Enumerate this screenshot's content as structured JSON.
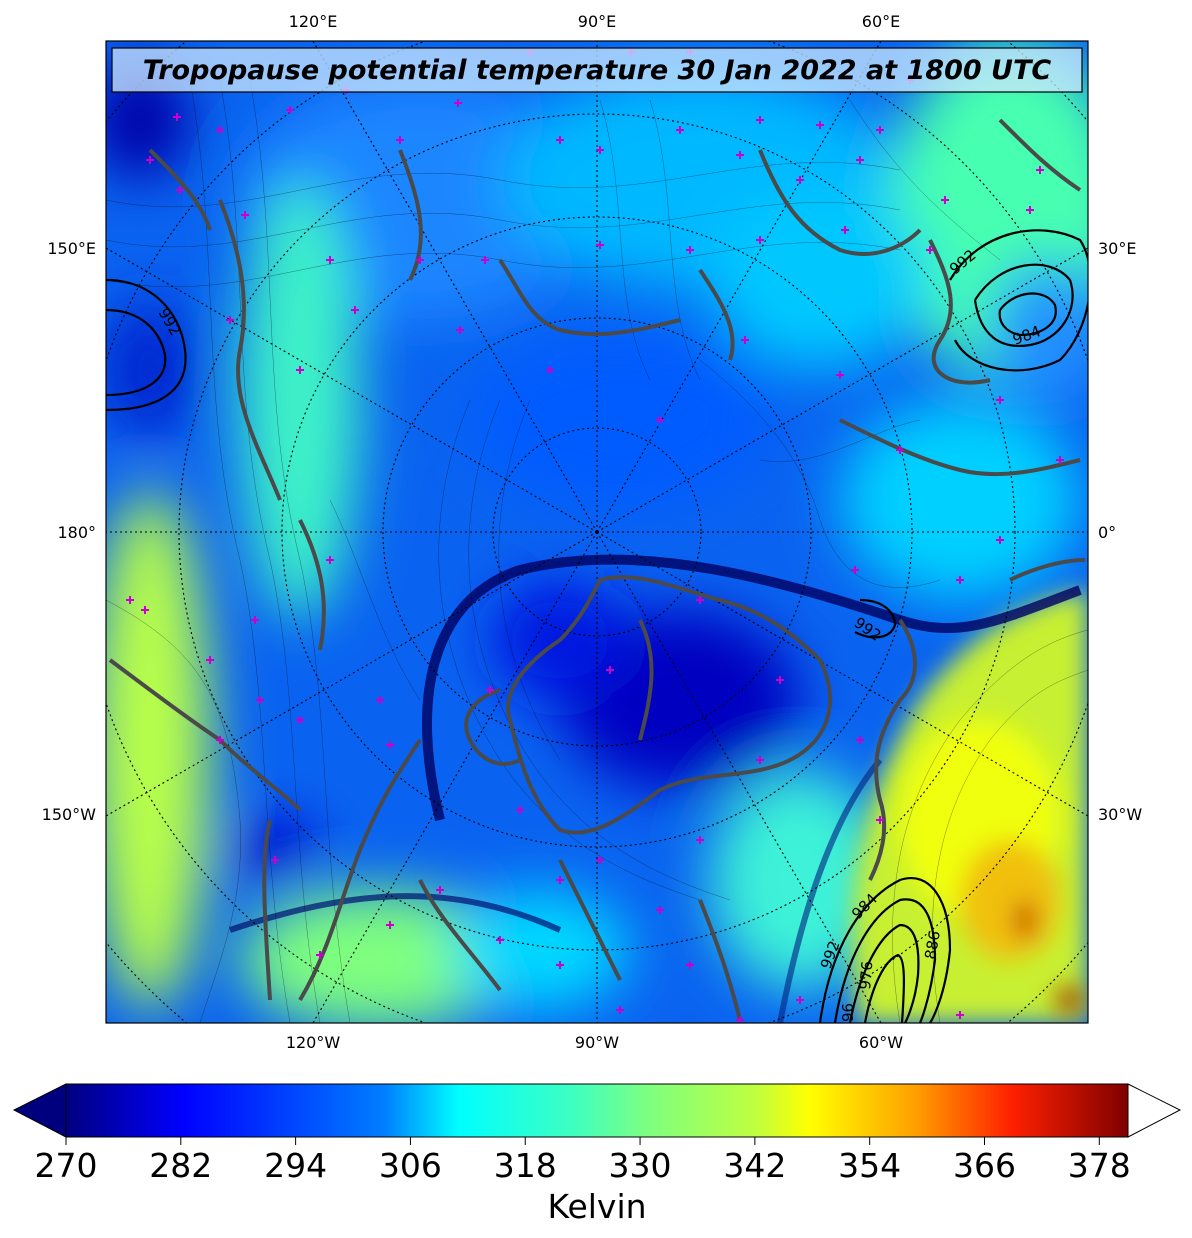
{
  "title": "Tropopause potential temperature 30 Jan 2022 at 1800 UTC",
  "lon_labels": {
    "top": [
      "120°E",
      "90°E",
      "60°E"
    ],
    "bottom": [
      "120°W",
      "90°W",
      "60°W"
    ],
    "left": [
      "150°E",
      "180°",
      "150°W"
    ],
    "right": [
      "30°E",
      "0°",
      "30°W"
    ]
  },
  "isobar_labels": [
    "992",
    "992",
    "984",
    "992",
    "984",
    "886",
    "992",
    "976",
    "96"
  ],
  "colorbar": {
    "ticks": [
      "270",
      "282",
      "294",
      "306",
      "318",
      "330",
      "342",
      "354",
      "366",
      "378"
    ],
    "label": "Kelvin",
    "min": 270,
    "max": 381,
    "colors": [
      "#00007f",
      "#0000ff",
      "#007fff",
      "#00ffff",
      "#7fff7f",
      "#ffff00",
      "#ff7f00",
      "#ff0000",
      "#7f0000"
    ]
  },
  "colors": {
    "coastline": "#4a4a4a",
    "station_marker": "#cc00cc",
    "frame": "#000000"
  }
}
